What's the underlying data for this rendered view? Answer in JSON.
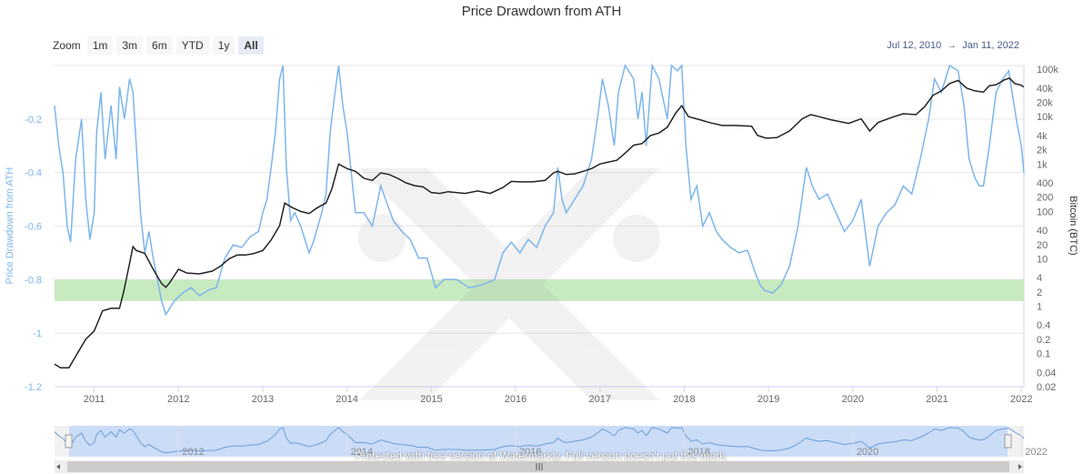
{
  "chart_data": {
    "type": "line",
    "title": "Price Drawdown from ATH",
    "zoom": {
      "label": "Zoom",
      "buttons": [
        "1m",
        "3m",
        "6m",
        "YTD",
        "1y",
        "All"
      ],
      "active": "All"
    },
    "date_range": {
      "from": "Jul 12, 2010",
      "arrow": "→",
      "to": "Jan 11, 2022"
    },
    "x_range": [
      2010.53,
      2022.03
    ],
    "x_ticks": [
      "2011",
      "2012",
      "2013",
      "2014",
      "2015",
      "2016",
      "2017",
      "2018",
      "2019",
      "2020",
      "2021",
      "2022"
    ],
    "y_left": {
      "label": "Price Drawdown from ATH",
      "range": [
        -1.2,
        0
      ],
      "ticks": [
        "-0.2",
        "-0.4",
        "-0.6",
        "-0.8",
        "-1",
        "-1.2"
      ]
    },
    "y_right": {
      "label": "Bitcoin (BTC)",
      "scale": "log",
      "range": [
        0.02,
        120000
      ],
      "ticks": [
        "0.02",
        "0.04",
        "0.1",
        "0.2",
        "0.4",
        "1",
        "2",
        "4",
        "10",
        "20",
        "40",
        "100",
        "200",
        "400",
        "1k",
        "2k",
        "4k",
        "10k",
        "20k",
        "40k",
        "100k"
      ]
    },
    "band": {
      "from": -0.8,
      "to": -0.88,
      "color": "#c8eac0"
    },
    "series": [
      {
        "name": "Price Drawdown from ATH",
        "axis": "left",
        "color": "#7cb5ec",
        "points": [
          [
            2010.53,
            -0.15
          ],
          [
            2010.58,
            -0.3
          ],
          [
            2010.63,
            -0.4
          ],
          [
            2010.68,
            -0.6
          ],
          [
            2010.72,
            -0.66
          ],
          [
            2010.78,
            -0.35
          ],
          [
            2010.85,
            -0.2
          ],
          [
            2010.9,
            -0.5
          ],
          [
            2010.95,
            -0.65
          ],
          [
            2011.0,
            -0.55
          ],
          [
            2011.03,
            -0.25
          ],
          [
            2011.08,
            -0.1
          ],
          [
            2011.13,
            -0.35
          ],
          [
            2011.2,
            -0.15
          ],
          [
            2011.26,
            -0.35
          ],
          [
            2011.3,
            -0.08
          ],
          [
            2011.36,
            -0.2
          ],
          [
            2011.42,
            -0.05
          ],
          [
            2011.46,
            -0.1
          ],
          [
            2011.5,
            -0.3
          ],
          [
            2011.55,
            -0.55
          ],
          [
            2011.6,
            -0.7
          ],
          [
            2011.65,
            -0.62
          ],
          [
            2011.7,
            -0.72
          ],
          [
            2011.75,
            -0.8
          ],
          [
            2011.8,
            -0.88
          ],
          [
            2011.85,
            -0.93
          ],
          [
            2011.95,
            -0.88
          ],
          [
            2012.05,
            -0.85
          ],
          [
            2012.15,
            -0.83
          ],
          [
            2012.25,
            -0.86
          ],
          [
            2012.35,
            -0.84
          ],
          [
            2012.45,
            -0.83
          ],
          [
            2012.55,
            -0.72
          ],
          [
            2012.65,
            -0.67
          ],
          [
            2012.75,
            -0.68
          ],
          [
            2012.85,
            -0.64
          ],
          [
            2012.95,
            -0.62
          ],
          [
            2013.0,
            -0.55
          ],
          [
            2013.05,
            -0.5
          ],
          [
            2013.1,
            -0.38
          ],
          [
            2013.15,
            -0.25
          ],
          [
            2013.2,
            -0.05
          ],
          [
            2013.24,
            0.0
          ],
          [
            2013.28,
            -0.38
          ],
          [
            2013.33,
            -0.58
          ],
          [
            2013.38,
            -0.55
          ],
          [
            2013.45,
            -0.6
          ],
          [
            2013.55,
            -0.7
          ],
          [
            2013.6,
            -0.66
          ],
          [
            2013.7,
            -0.55
          ],
          [
            2013.75,
            -0.48
          ],
          [
            2013.8,
            -0.25
          ],
          [
            2013.85,
            -0.12
          ],
          [
            2013.9,
            0.0
          ],
          [
            2013.95,
            -0.15
          ],
          [
            2014.0,
            -0.25
          ],
          [
            2014.05,
            -0.4
          ],
          [
            2014.1,
            -0.55
          ],
          [
            2014.2,
            -0.55
          ],
          [
            2014.3,
            -0.6
          ],
          [
            2014.4,
            -0.45
          ],
          [
            2014.48,
            -0.52
          ],
          [
            2014.55,
            -0.58
          ],
          [
            2014.65,
            -0.62
          ],
          [
            2014.75,
            -0.65
          ],
          [
            2014.85,
            -0.72
          ],
          [
            2014.95,
            -0.72
          ],
          [
            2015.05,
            -0.83
          ],
          [
            2015.15,
            -0.8
          ],
          [
            2015.3,
            -0.8
          ],
          [
            2015.45,
            -0.83
          ],
          [
            2015.6,
            -0.82
          ],
          [
            2015.75,
            -0.8
          ],
          [
            2015.85,
            -0.7
          ],
          [
            2015.95,
            -0.66
          ],
          [
            2016.05,
            -0.7
          ],
          [
            2016.15,
            -0.65
          ],
          [
            2016.25,
            -0.68
          ],
          [
            2016.35,
            -0.6
          ],
          [
            2016.45,
            -0.55
          ],
          [
            2016.5,
            -0.38
          ],
          [
            2016.55,
            -0.5
          ],
          [
            2016.6,
            -0.55
          ],
          [
            2016.7,
            -0.5
          ],
          [
            2016.8,
            -0.45
          ],
          [
            2016.9,
            -0.35
          ],
          [
            2016.97,
            -0.2
          ],
          [
            2017.03,
            -0.05
          ],
          [
            2017.1,
            -0.15
          ],
          [
            2017.17,
            -0.3
          ],
          [
            2017.22,
            -0.1
          ],
          [
            2017.3,
            0.0
          ],
          [
            2017.4,
            -0.05
          ],
          [
            2017.45,
            -0.2
          ],
          [
            2017.5,
            -0.1
          ],
          [
            2017.55,
            -0.3
          ],
          [
            2017.62,
            0.0
          ],
          [
            2017.7,
            -0.05
          ],
          [
            2017.8,
            -0.2
          ],
          [
            2017.85,
            0.0
          ],
          [
            2017.92,
            -0.02
          ],
          [
            2017.97,
            0.0
          ],
          [
            2018.02,
            -0.3
          ],
          [
            2018.08,
            -0.5
          ],
          [
            2018.15,
            -0.45
          ],
          [
            2018.22,
            -0.6
          ],
          [
            2018.3,
            -0.55
          ],
          [
            2018.38,
            -0.62
          ],
          [
            2018.45,
            -0.65
          ],
          [
            2018.55,
            -0.68
          ],
          [
            2018.65,
            -0.7
          ],
          [
            2018.75,
            -0.69
          ],
          [
            2018.85,
            -0.78
          ],
          [
            2018.9,
            -0.82
          ],
          [
            2018.95,
            -0.84
          ],
          [
            2019.05,
            -0.85
          ],
          [
            2019.15,
            -0.82
          ],
          [
            2019.25,
            -0.75
          ],
          [
            2019.35,
            -0.6
          ],
          [
            2019.45,
            -0.38
          ],
          [
            2019.52,
            -0.45
          ],
          [
            2019.6,
            -0.5
          ],
          [
            2019.7,
            -0.48
          ],
          [
            2019.8,
            -0.55
          ],
          [
            2019.9,
            -0.62
          ],
          [
            2020.0,
            -0.58
          ],
          [
            2020.1,
            -0.5
          ],
          [
            2020.2,
            -0.75
          ],
          [
            2020.3,
            -0.6
          ],
          [
            2020.4,
            -0.55
          ],
          [
            2020.5,
            -0.52
          ],
          [
            2020.6,
            -0.45
          ],
          [
            2020.7,
            -0.48
          ],
          [
            2020.8,
            -0.35
          ],
          [
            2020.9,
            -0.2
          ],
          [
            2020.97,
            -0.05
          ],
          [
            2021.05,
            -0.1
          ],
          [
            2021.15,
            0.0
          ],
          [
            2021.25,
            -0.02
          ],
          [
            2021.32,
            -0.15
          ],
          [
            2021.38,
            -0.35
          ],
          [
            2021.45,
            -0.42
          ],
          [
            2021.5,
            -0.45
          ],
          [
            2021.55,
            -0.45
          ],
          [
            2021.62,
            -0.3
          ],
          [
            2021.7,
            -0.1
          ],
          [
            2021.78,
            -0.05
          ],
          [
            2021.85,
            -0.02
          ],
          [
            2021.9,
            -0.12
          ],
          [
            2021.95,
            -0.22
          ],
          [
            2022.0,
            -0.3
          ],
          [
            2022.03,
            -0.4
          ]
        ]
      },
      {
        "name": "Bitcoin (BTC)",
        "axis": "right",
        "color": "#222222",
        "points": [
          [
            2010.53,
            0.06
          ],
          [
            2010.6,
            0.05
          ],
          [
            2010.7,
            0.05
          ],
          [
            2010.8,
            0.1
          ],
          [
            2010.9,
            0.2
          ],
          [
            2011.0,
            0.3
          ],
          [
            2011.1,
            0.8
          ],
          [
            2011.2,
            0.9
          ],
          [
            2011.3,
            0.9
          ],
          [
            2011.35,
            2
          ],
          [
            2011.42,
            8
          ],
          [
            2011.46,
            18
          ],
          [
            2011.5,
            15
          ],
          [
            2011.6,
            13
          ],
          [
            2011.7,
            6
          ],
          [
            2011.8,
            3
          ],
          [
            2011.85,
            2.5
          ],
          [
            2011.9,
            3.2
          ],
          [
            2012.0,
            6
          ],
          [
            2012.1,
            5
          ],
          [
            2012.25,
            4.8
          ],
          [
            2012.4,
            5.5
          ],
          [
            2012.5,
            7
          ],
          [
            2012.6,
            10
          ],
          [
            2012.7,
            12
          ],
          [
            2012.8,
            12
          ],
          [
            2012.9,
            13
          ],
          [
            2013.0,
            15
          ],
          [
            2013.1,
            25
          ],
          [
            2013.2,
            50
          ],
          [
            2013.26,
            150
          ],
          [
            2013.35,
            120
          ],
          [
            2013.45,
            100
          ],
          [
            2013.55,
            90
          ],
          [
            2013.65,
            120
          ],
          [
            2013.75,
            150
          ],
          [
            2013.82,
            300
          ],
          [
            2013.9,
            1000
          ],
          [
            2014.0,
            800
          ],
          [
            2014.1,
            700
          ],
          [
            2014.2,
            500
          ],
          [
            2014.3,
            450
          ],
          [
            2014.4,
            650
          ],
          [
            2014.5,
            600
          ],
          [
            2014.6,
            500
          ],
          [
            2014.7,
            400
          ],
          [
            2014.8,
            350
          ],
          [
            2014.9,
            330
          ],
          [
            2015.0,
            250
          ],
          [
            2015.1,
            240
          ],
          [
            2015.2,
            260
          ],
          [
            2015.4,
            240
          ],
          [
            2015.55,
            270
          ],
          [
            2015.7,
            240
          ],
          [
            2015.85,
            320
          ],
          [
            2015.95,
            430
          ],
          [
            2016.05,
            420
          ],
          [
            2016.2,
            420
          ],
          [
            2016.35,
            450
          ],
          [
            2016.45,
            650
          ],
          [
            2016.5,
            700
          ],
          [
            2016.6,
            600
          ],
          [
            2016.7,
            620
          ],
          [
            2016.8,
            700
          ],
          [
            2016.9,
            800
          ],
          [
            2017.0,
            1000
          ],
          [
            2017.1,
            1100
          ],
          [
            2017.2,
            1200
          ],
          [
            2017.3,
            1700
          ],
          [
            2017.4,
            2500
          ],
          [
            2017.5,
            2700
          ],
          [
            2017.6,
            4000
          ],
          [
            2017.7,
            4500
          ],
          [
            2017.8,
            6000
          ],
          [
            2017.9,
            12000
          ],
          [
            2017.97,
            17000
          ],
          [
            2018.05,
            10000
          ],
          [
            2018.15,
            9000
          ],
          [
            2018.3,
            7500
          ],
          [
            2018.45,
            6500
          ],
          [
            2018.6,
            6500
          ],
          [
            2018.8,
            6300
          ],
          [
            2018.87,
            4000
          ],
          [
            2018.97,
            3500
          ],
          [
            2019.1,
            3600
          ],
          [
            2019.25,
            5000
          ],
          [
            2019.4,
            9000
          ],
          [
            2019.5,
            11000
          ],
          [
            2019.6,
            10000
          ],
          [
            2019.75,
            8500
          ],
          [
            2019.95,
            7200
          ],
          [
            2020.1,
            9000
          ],
          [
            2020.2,
            5000
          ],
          [
            2020.3,
            7500
          ],
          [
            2020.45,
            9500
          ],
          [
            2020.6,
            11500
          ],
          [
            2020.75,
            11000
          ],
          [
            2020.85,
            16000
          ],
          [
            2020.95,
            28000
          ],
          [
            2021.05,
            35000
          ],
          [
            2021.15,
            50000
          ],
          [
            2021.25,
            58000
          ],
          [
            2021.35,
            40000
          ],
          [
            2021.45,
            35000
          ],
          [
            2021.55,
            33000
          ],
          [
            2021.62,
            45000
          ],
          [
            2021.7,
            47000
          ],
          [
            2021.8,
            60000
          ],
          [
            2021.86,
            65000
          ],
          [
            2021.92,
            50000
          ],
          [
            2022.0,
            46000
          ],
          [
            2022.03,
            42000
          ]
        ]
      }
    ],
    "navigator": {
      "labels": [
        "2012",
        "2014",
        "2016",
        "2018",
        "2020",
        "2022"
      ]
    }
  },
  "watermark": "Protected with free version of Watermarkly. Full version doesn't put this mark."
}
